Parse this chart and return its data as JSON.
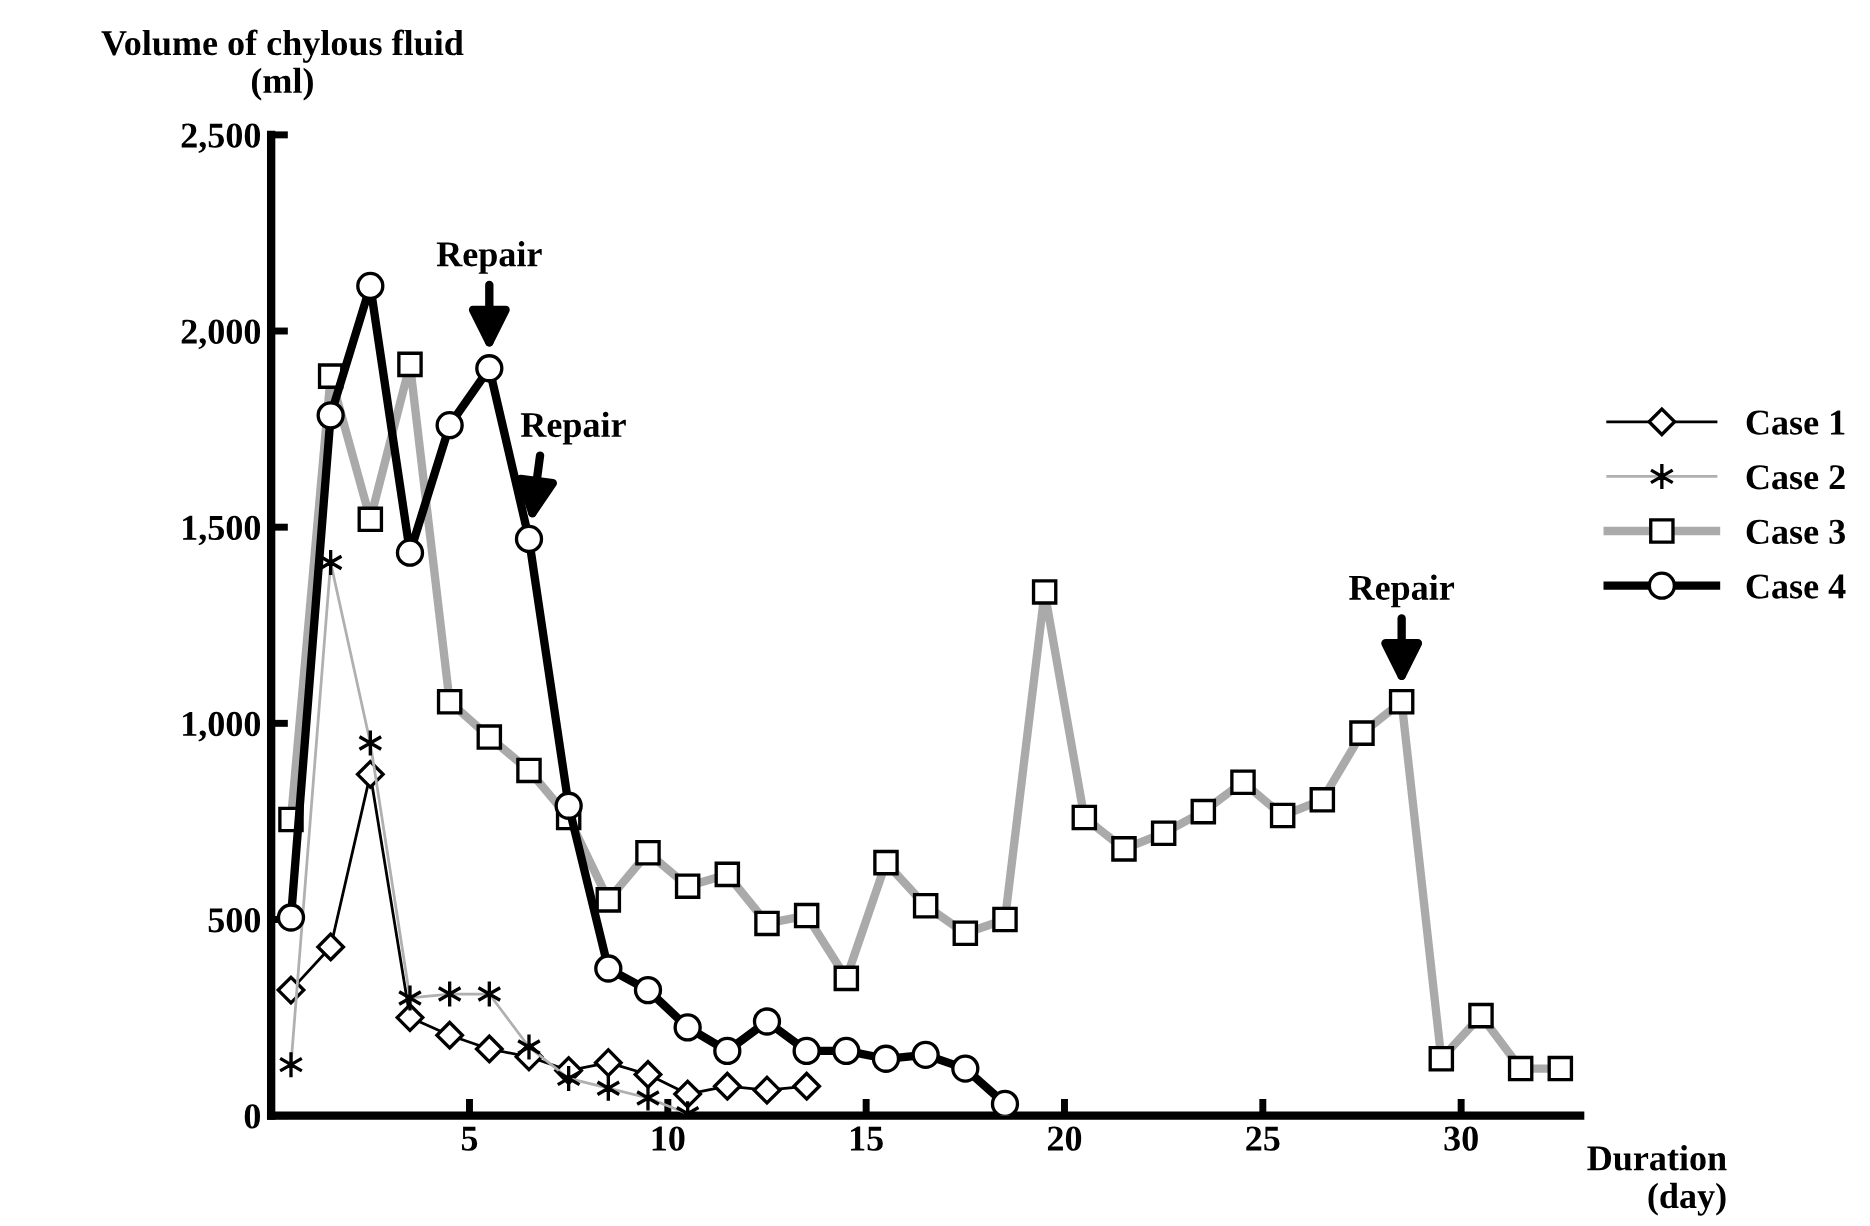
{
  "chart_data": {
    "type": "line",
    "xlabel": "Duration\n(day)",
    "ylabel": "Volume of chylous fluid\n(ml)",
    "xlim": [
      0,
      33
    ],
    "xticks": [
      5,
      10,
      15,
      20,
      25,
      30
    ],
    "ylim": [
      0,
      2500
    ],
    "yticks": [
      {
        "value": 0,
        "label": "0"
      },
      {
        "value": 500,
        "label": "500"
      },
      {
        "value": 1000,
        "label": "1,000"
      },
      {
        "value": 1500,
        "label": "1,500"
      },
      {
        "value": 2000,
        "label": "2,000"
      },
      {
        "value": 2500,
        "label": "2,500"
      }
    ],
    "grid": false,
    "legend": "right",
    "series": [
      {
        "name": "Case 1",
        "color": "#000000",
        "marker": "diamond",
        "x": [
          0.5,
          1.5,
          2.5,
          3.5,
          4.5,
          5.5,
          6.5,
          7.5,
          8.5,
          9.5,
          10.5,
          11.5,
          12.5,
          13.5
        ],
        "values": [
          320,
          430,
          870,
          250,
          205,
          170,
          150,
          115,
          135,
          105,
          55,
          75,
          65,
          75
        ]
      },
      {
        "name": "Case 2",
        "color": "#b0b0b0",
        "marker": "cross",
        "x": [
          0.5,
          1.5,
          2.5,
          3.5,
          4.5,
          5.5,
          6.5,
          7.5,
          8.5,
          9.5,
          10.5
        ],
        "values": [
          130,
          1410,
          950,
          300,
          310,
          310,
          175,
          95,
          70,
          45,
          5
        ]
      },
      {
        "name": "Case 3",
        "color": "#aaaaaa",
        "marker": "square",
        "x": [
          0.5,
          1.5,
          2.5,
          3.5,
          4.5,
          5.5,
          6.5,
          7.5,
          8.5,
          9.5,
          10.5,
          11.5,
          12.5,
          13.5,
          14.5,
          15.5,
          16.5,
          17.5,
          18.5,
          19.5,
          20.5,
          21.5,
          22.5,
          23.5,
          24.5,
          25.5,
          26.5,
          27.5,
          28.5,
          29.5,
          30.5,
          31.5,
          32.5
        ],
        "values": [
          755,
          1885,
          1520,
          1915,
          1055,
          965,
          880,
          760,
          550,
          670,
          585,
          615,
          490,
          510,
          350,
          645,
          535,
          465,
          500,
          1335,
          760,
          680,
          720,
          775,
          850,
          765,
          805,
          975,
          1055,
          145,
          255,
          120,
          120
        ]
      },
      {
        "name": "Case 4",
        "color": "#000000",
        "marker": "circle",
        "x": [
          0.5,
          1.5,
          2.5,
          3.5,
          4.5,
          5.5,
          6.5,
          7.5,
          8.5,
          9.5,
          10.5,
          11.5,
          12.5,
          13.5,
          14.5,
          15.5,
          16.5,
          17.5,
          18.5
        ],
        "values": [
          505,
          1785,
          2115,
          1435,
          1760,
          1905,
          1470,
          790,
          375,
          320,
          225,
          165,
          240,
          165,
          165,
          145,
          155,
          120,
          30
        ]
      }
    ],
    "annotations": [
      {
        "text": "Repair",
        "x": 5.5,
        "y": 1905
      },
      {
        "text": "Repair",
        "x": 6.5,
        "y": 1470
      },
      {
        "text": "Repair",
        "x": 28.5,
        "y": 1055
      }
    ]
  }
}
